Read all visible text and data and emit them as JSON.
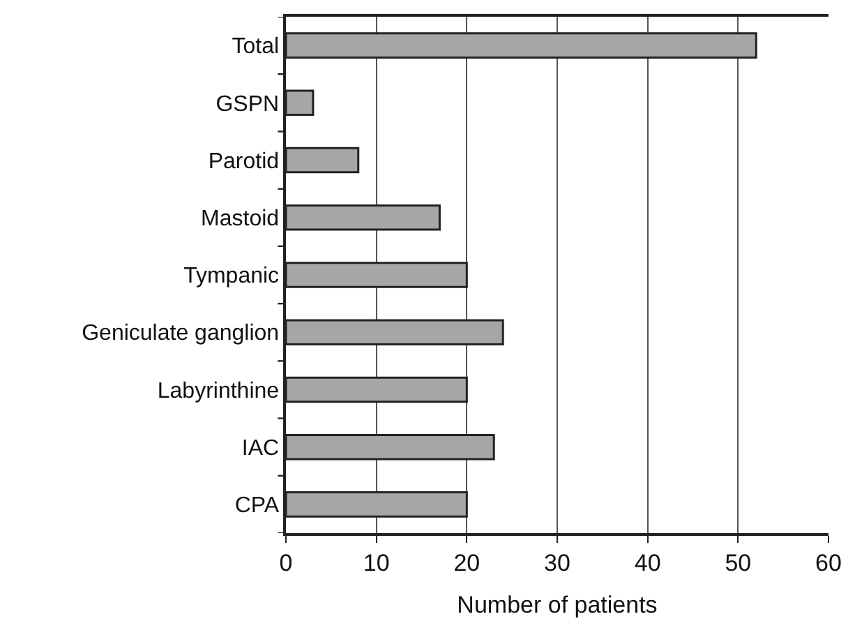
{
  "chart_data": {
    "type": "bar",
    "orientation": "horizontal",
    "xlabel": "Number of patients",
    "categories": [
      "Total",
      "GSPN",
      "Parotid",
      "Mastoid",
      "Tympanic",
      "Geniculate ganglion",
      "Labyrinthine",
      "IAC",
      "CPA"
    ],
    "values": [
      52,
      3,
      8,
      17,
      20,
      24,
      20,
      23,
      20
    ],
    "color": "#a6a6a6",
    "xlim": [
      0,
      60
    ],
    "xticks": [
      0,
      10,
      20,
      30,
      40,
      50,
      60
    ],
    "grid": "x"
  }
}
